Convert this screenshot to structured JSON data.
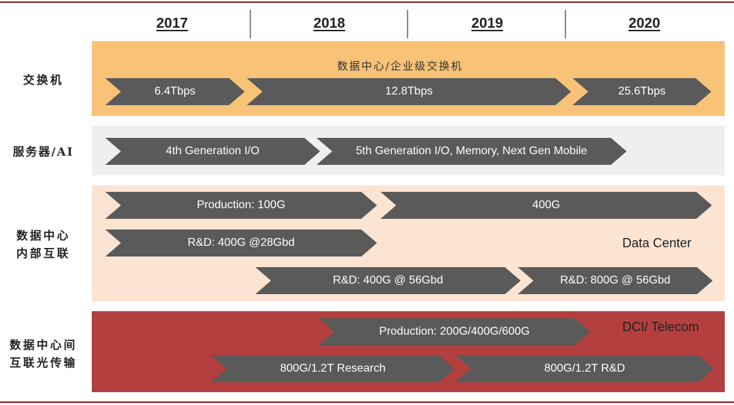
{
  "years": [
    "2017",
    "2018",
    "2019",
    "2020"
  ],
  "colors": {
    "switch_band": "#f8c277",
    "server_band": "#efefef",
    "dc_band": "#fce4d3",
    "dci_band": "#b3403e",
    "arrow": "#5a5a5a",
    "rule": "#8b1c1c"
  },
  "rows": {
    "switch": {
      "label": "交换机",
      "subtitle": "数据中心/企业级交换机",
      "arrows": [
        "6.4Tbps",
        "12.8Tbps",
        "25.6Tbps"
      ]
    },
    "server": {
      "label": "服务器/AI",
      "arrows": [
        "4th Generation I/O",
        "5th Generation I/O, Memory, Next Gen Mobile"
      ]
    },
    "datacenter": {
      "label_line1": "数据中心",
      "label_line2": "内部互联",
      "note": "Data Center",
      "arrows": [
        "Production: 100G",
        "400G",
        "R&D: 400G @28Gbd",
        "R&D: 400G @ 56Gbd",
        "R&D: 800G @ 56Gbd"
      ]
    },
    "dci": {
      "label_line1": "数据中心间",
      "label_line2": "互联光传输",
      "note": "DCI/ Telecom",
      "arrows": [
        "Production: 200G/400G/600G",
        "800G/1.2T Research",
        "800G/1.2T R&D"
      ]
    }
  }
}
